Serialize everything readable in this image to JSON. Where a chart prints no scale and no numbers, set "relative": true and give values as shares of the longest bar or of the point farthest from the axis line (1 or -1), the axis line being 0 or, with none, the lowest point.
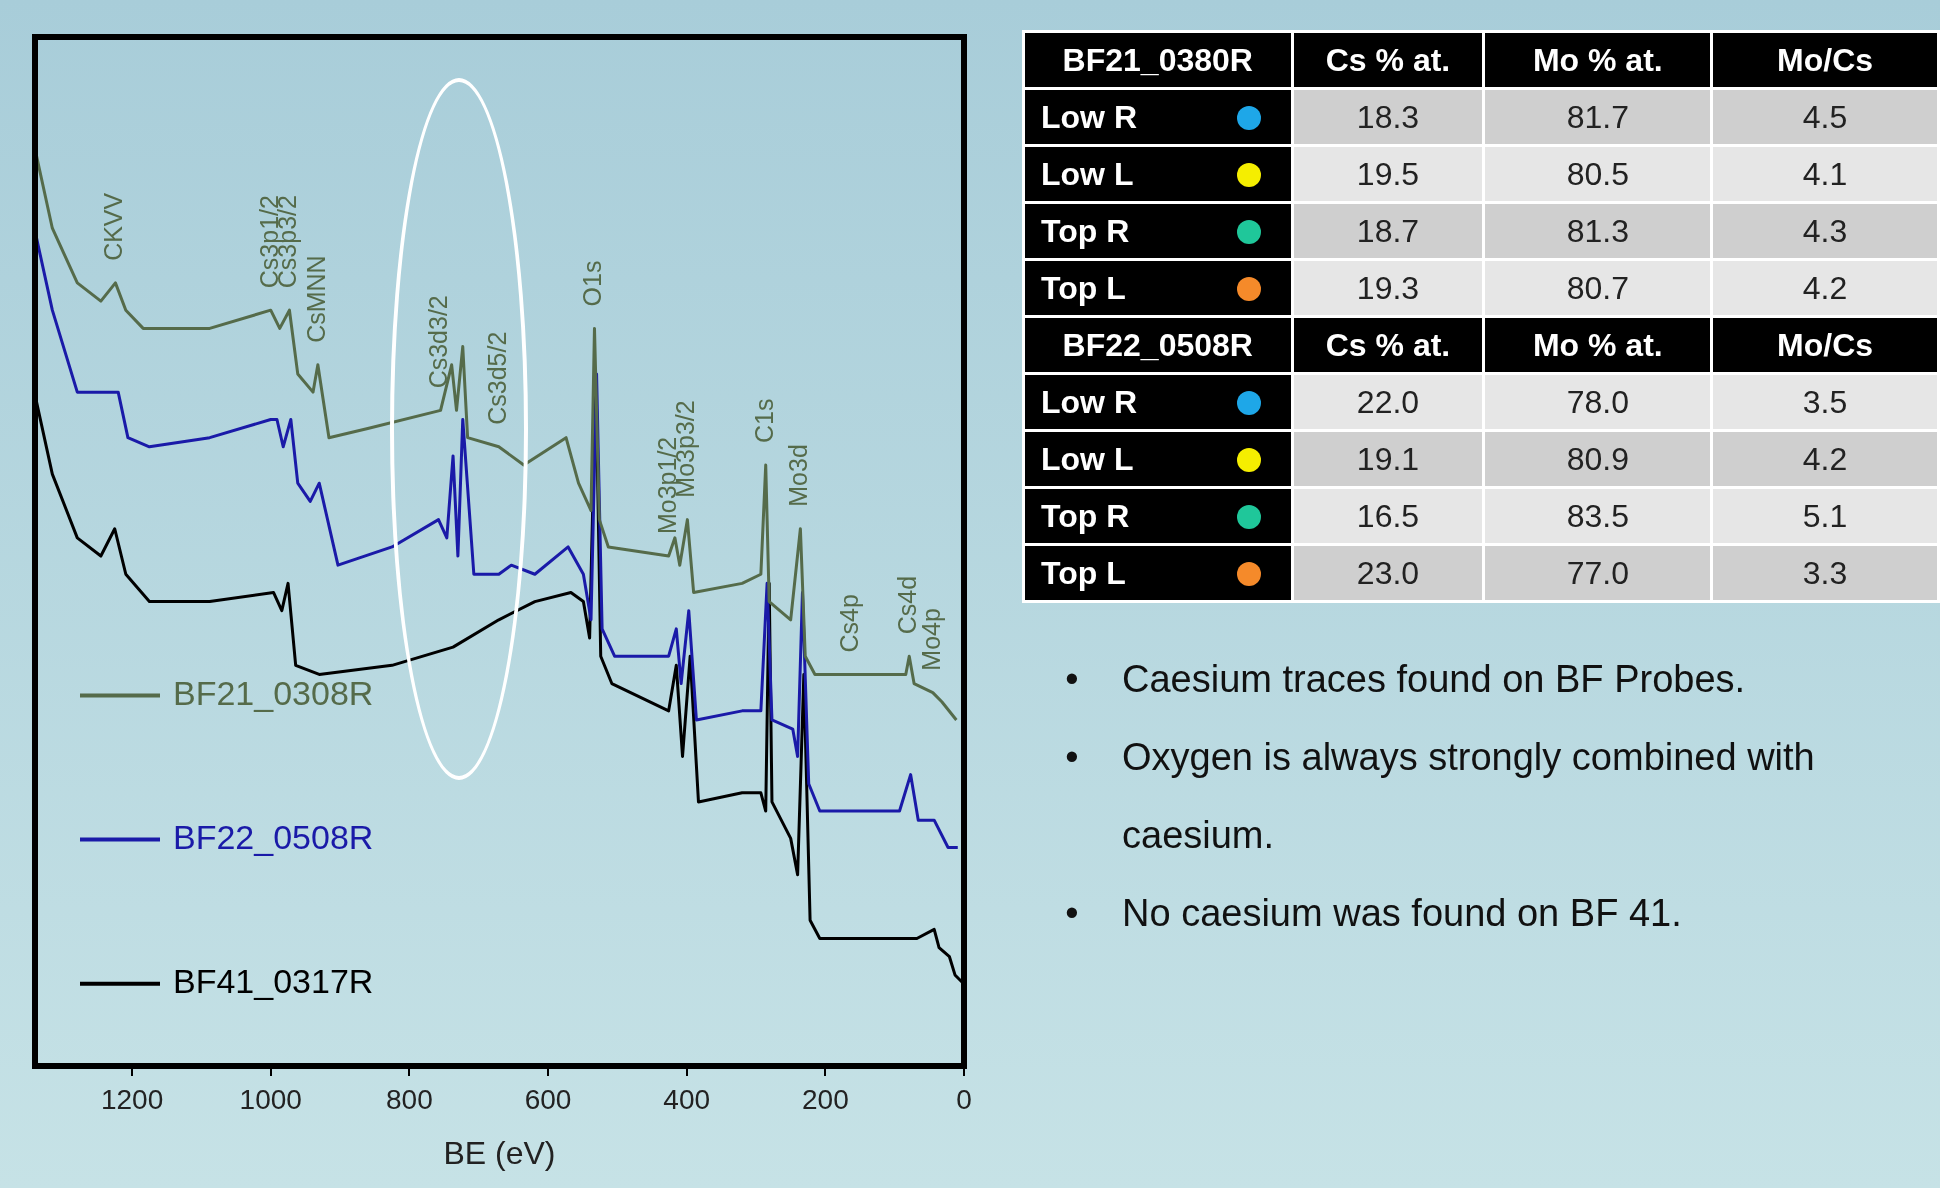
{
  "chart_data": [
    {
      "type": "line",
      "relative": true,
      "xlabel": "BE (eV)",
      "xlim": [
        1340,
        0
      ],
      "xticks": [
        1200,
        1000,
        800,
        600,
        400,
        200,
        0
      ],
      "legend": "bottom left",
      "tick_labels": "x",
      "series": [
        {
          "name": "BF21_0308R",
          "color": "#556b4a",
          "x": [
            1338,
            1315,
            1279,
            1245,
            1224,
            1209,
            1184,
            1088,
            1000,
            987,
            973,
            961,
            939,
            932,
            916,
            860,
            755,
            739,
            732,
            723,
            716,
            671,
            635,
            574,
            556,
            538,
            533,
            526,
            513,
            426,
            417,
            410,
            399,
            390,
            320,
            293,
            286,
            281,
            250,
            236,
            229,
            215,
            163,
            111,
            84,
            79,
            72,
            45,
            32,
            11
          ],
          "values": [
            1.0,
            0.92,
            0.86,
            0.84,
            0.86,
            0.83,
            0.81,
            0.81,
            0.83,
            0.81,
            0.83,
            0.76,
            0.74,
            0.77,
            0.69,
            0.7,
            0.72,
            0.77,
            0.72,
            0.79,
            0.69,
            0.68,
            0.66,
            0.69,
            0.64,
            0.61,
            0.81,
            0.6,
            0.57,
            0.56,
            0.58,
            0.55,
            0.6,
            0.52,
            0.53,
            0.54,
            0.66,
            0.51,
            0.49,
            0.59,
            0.45,
            0.43,
            0.43,
            0.43,
            0.43,
            0.45,
            0.42,
            0.41,
            0.4,
            0.38
          ]
        },
        {
          "name": "BF22_0508R",
          "color": "#1a1aa8",
          "x": [
            1338,
            1315,
            1279,
            1236,
            1220,
            1206,
            1175,
            1088,
            1000,
            991,
            982,
            971,
            961,
            943,
            930,
            903,
            825,
            758,
            746,
            737,
            730,
            723,
            707,
            671,
            653,
            619,
            571,
            549,
            538,
            530,
            522,
            504,
            426,
            415,
            408,
            397,
            386,
            320,
            293,
            284,
            277,
            247,
            240,
            233,
            224,
            208,
            147,
            93,
            77,
            66,
            43,
            23,
            9
          ],
          "values": [
            0.91,
            0.83,
            0.74,
            0.74,
            0.74,
            0.69,
            0.68,
            0.69,
            0.71,
            0.71,
            0.68,
            0.71,
            0.64,
            0.62,
            0.64,
            0.55,
            0.57,
            0.6,
            0.58,
            0.67,
            0.56,
            0.71,
            0.54,
            0.54,
            0.55,
            0.54,
            0.57,
            0.54,
            0.49,
            0.76,
            0.48,
            0.45,
            0.45,
            0.48,
            0.42,
            0.5,
            0.38,
            0.39,
            0.39,
            0.53,
            0.38,
            0.37,
            0.34,
            0.52,
            0.31,
            0.28,
            0.28,
            0.28,
            0.32,
            0.27,
            0.27,
            0.24,
            0.24
          ]
        },
        {
          "name": "BF41_0317R",
          "color": "#000000",
          "x": [
            1338,
            1315,
            1279,
            1245,
            1225,
            1209,
            1175,
            1088,
            996,
            984,
            975,
            964,
            930,
            825,
            737,
            671,
            619,
            567,
            549,
            540,
            531,
            524,
            508,
            426,
            415,
            406,
            395,
            383,
            320,
            293,
            286,
            281,
            277,
            250,
            240,
            231,
            222,
            208,
            147,
            68,
            43,
            36,
            21,
            13,
            0
          ],
          "values": [
            0.73,
            0.65,
            0.58,
            0.56,
            0.59,
            0.54,
            0.51,
            0.51,
            0.52,
            0.5,
            0.53,
            0.44,
            0.43,
            0.44,
            0.46,
            0.49,
            0.51,
            0.52,
            0.51,
            0.47,
            0.76,
            0.45,
            0.42,
            0.39,
            0.44,
            0.34,
            0.45,
            0.29,
            0.3,
            0.3,
            0.28,
            0.53,
            0.29,
            0.25,
            0.21,
            0.43,
            0.16,
            0.14,
            0.14,
            0.14,
            0.15,
            0.13,
            0.12,
            0.1,
            0.09
          ]
        }
      ],
      "annotations": [
        {
          "text": "CKVV",
          "x": 1224,
          "y": 0.86
        },
        {
          "text": "Cs3p1/2",
          "x": 1000,
          "y": 0.83
        },
        {
          "text": "Cs3p3/2",
          "x": 973,
          "y": 0.83
        },
        {
          "text": "CsMNN",
          "x": 932,
          "y": 0.77
        },
        {
          "text": "Cs3d3/2",
          "x": 755,
          "y": 0.72
        },
        {
          "text": "Cs3d5/2",
          "x": 671,
          "y": 0.68
        },
        {
          "text": "O1s",
          "x": 533,
          "y": 0.81
        },
        {
          "text": "Mo3p1/2",
          "x": 426,
          "y": 0.56
        },
        {
          "text": "Mo3p3/2",
          "x": 399,
          "y": 0.6
        },
        {
          "text": "C1s",
          "x": 286,
          "y": 0.66
        },
        {
          "text": "Mo3d",
          "x": 236,
          "y": 0.59
        },
        {
          "text": "Cs4p",
          "x": 163,
          "y": 0.43
        },
        {
          "text": "Cs4d",
          "x": 79,
          "y": 0.45
        },
        {
          "text": "Mo4p",
          "x": 45,
          "y": 0.41
        }
      ]
    },
    {
      "type": "other",
      "annotations": [
        "BF21_0380R",
        "Cs % at.",
        "Mo % at.",
        "Mo/Cs",
        "Low R",
        "18.3",
        "81.7",
        "4.5",
        "Low L",
        "19.5",
        "80.5",
        "4.1",
        "Top R",
        "18.7",
        "81.3",
        "4.3",
        "Top L",
        "19.3",
        "80.7",
        "4.2",
        "BF22_0508R",
        "Cs % at.",
        "Mo % at.",
        "Mo/Cs",
        "Low R",
        "22.0",
        "78.0",
        "3.5",
        "Low L",
        "19.1",
        "80.9",
        "4.2",
        "Top R",
        "16.5",
        "83.5",
        "5.1",
        "Top L",
        "23.0",
        "77.0",
        "3.3"
      ]
    },
    {
      "type": "other",
      "annotations": [
        "•",
        "Caesium traces found on BF Probes.",
        "•",
        "Oxygen is always strongly combined with caesium.",
        "•",
        "No caesium was found on BF 41."
      ]
    }
  ]
}
